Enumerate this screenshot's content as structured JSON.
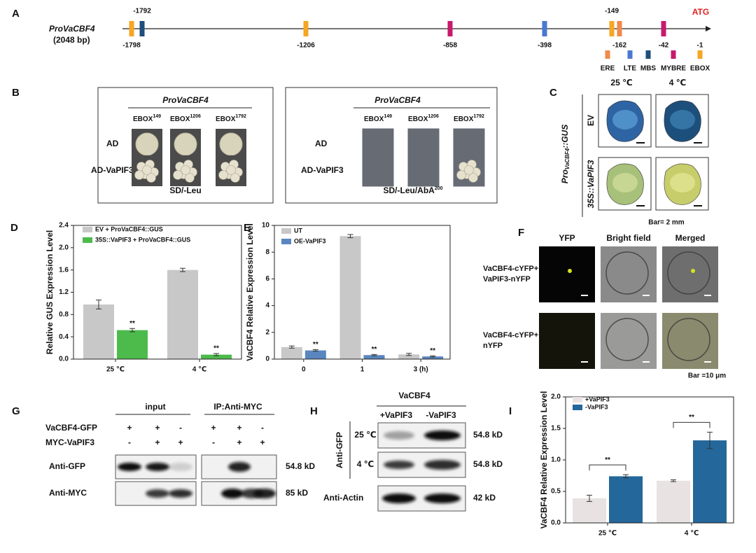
{
  "panel_labels": [
    "A",
    "B",
    "C",
    "D",
    "E",
    "F",
    "G",
    "H",
    "I"
  ],
  "panel_a": {
    "promoter": "ProVaCBF4",
    "length": "(2048 bp)",
    "start_codon": "ATG",
    "sites": [
      {
        "label": "-1798",
        "type": "EBOX",
        "side": "bottom"
      },
      {
        "label": "-1792",
        "type": "MBS",
        "side": "top"
      },
      {
        "label": "-1206",
        "type": "EBOX",
        "side": "bottom"
      },
      {
        "label": "-858",
        "type": "MYBRE",
        "side": "bottom"
      },
      {
        "label": "-398",
        "type": "LTE",
        "side": "bottom"
      },
      {
        "label": "-149",
        "type": "EBOX",
        "side": "top"
      },
      {
        "label": "-162",
        "type": "ERE",
        "side": "bottom"
      },
      {
        "label": "-42",
        "type": "MYBRE",
        "side": "bottom"
      }
    ],
    "end_label": "-1",
    "legend": [
      {
        "name": "ERE",
        "color": "#f08a4b"
      },
      {
        "name": "LTE",
        "color": "#4a78d0"
      },
      {
        "name": "MBS",
        "color": "#1f4e79"
      },
      {
        "name": "MYBRE",
        "color": "#c8196b"
      },
      {
        "name": "EBOX",
        "color": "#f5a623"
      }
    ]
  },
  "panel_b": [
    {
      "header": "ProVaCBF4",
      "columns": [
        {
          "text": "EBOX",
          "sup": "149"
        },
        {
          "text": "EBOX",
          "sup": "1206"
        },
        {
          "text": "EBOX",
          "sup": "1792"
        }
      ],
      "rows": [
        "AD",
        "AD-VaPIF3"
      ],
      "growth": [
        [
          true,
          true,
          true
        ],
        [
          true,
          true,
          true
        ]
      ],
      "medium": {
        "text": "SD/-Leu"
      }
    },
    {
      "header": "ProVaCBF4",
      "columns": [
        {
          "text": "EBOX",
          "sup": "149"
        },
        {
          "text": "EBOX",
          "sup": "1206"
        },
        {
          "text": "EBOX",
          "sup": "1792"
        }
      ],
      "rows": [
        "AD",
        "AD-VaPIF3"
      ],
      "growth": [
        [
          false,
          false,
          false
        ],
        [
          false,
          false,
          true
        ]
      ],
      "medium": {
        "text": "SD/-Leu/AbA",
        "sup": "200"
      }
    }
  ],
  "panel_c": {
    "columns": [
      "25 ℃",
      "4 ℃"
    ],
    "rows": [
      "EV",
      "35S::VaPIF3"
    ],
    "construct": {
      "prefix": "Pro",
      "sub": "VaCBF4",
      "suffix": "::GUS"
    },
    "scale": "Bar= 2 mm"
  },
  "panel_f": {
    "columns": [
      "YFP",
      "Bright field",
      "Merged"
    ],
    "rows": [
      [
        "VaCBF4-cYFP+",
        "VaPIF3-nYFP"
      ],
      [
        "VaCBF4-cYFP+",
        "nYFP"
      ]
    ],
    "scale": "Bar =10 μm"
  },
  "panel_g": {
    "groups": [
      "input",
      "IP:Anti-MYC"
    ],
    "conditions": [
      {
        "name": "VaCBF4-GFP",
        "signs": [
          "+",
          "+",
          "-",
          "+",
          "+",
          "-"
        ]
      },
      {
        "name": "MYC-VaPIF3",
        "signs": [
          "-",
          "+",
          "+",
          "-",
          "+",
          "+"
        ]
      }
    ],
    "blots": [
      {
        "antibody": "Anti-GFP",
        "size": "54.8 kD"
      },
      {
        "antibody": "Anti-MYC",
        "size": "85 kD"
      }
    ]
  },
  "panel_h": {
    "protein": "VaCBF4",
    "columns": [
      "+VaPIF3",
      "-VaPIF3"
    ],
    "antibody": "Anti-GFP",
    "rows": [
      {
        "condition": "25 ℃",
        "size": "54.8 kD"
      },
      {
        "condition": "4 ℃",
        "size": "54.8 kD"
      }
    ],
    "loading": {
      "antibody": "Anti-Actin",
      "size": "42 kD"
    }
  },
  "chart_data": [
    {
      "type": "bar",
      "y_label": "Relative GUS Expression Level",
      "categories": [
        "25 ℃",
        "4 ℃"
      ],
      "series": [
        {
          "name": "EV + ProVaCBF4::GUS",
          "color": "#c8c8c8",
          "values": [
            0.98,
            1.6
          ],
          "errors": [
            0.08,
            0.03
          ]
        },
        {
          "name": "35S::VaPIF3 + ProVaCBF4::GUS",
          "color": "#4cbb4c",
          "values": [
            0.52,
            0.08
          ],
          "errors": [
            0.03,
            0.02
          ],
          "significance": [
            "**",
            "**"
          ]
        }
      ],
      "ylim": [
        0,
        2.4
      ],
      "yticks": [
        {
          "value": 0,
          "label": "0.0"
        },
        0.4,
        0.8,
        1.2,
        1.6,
        {
          "value": 2,
          "label": "2.0"
        },
        2.4
      ]
    },
    {
      "type": "bar",
      "y_label": "VaCBF4 Relative Expression Level",
      "categories": [
        "0",
        "1",
        "3 (h)"
      ],
      "series": [
        {
          "name": "UT",
          "color": "#c8c8c8",
          "values": [
            0.9,
            9.2,
            0.35
          ],
          "errors": [
            0.08,
            0.12,
            0.08
          ]
        },
        {
          "name": "OE-VaPIF3",
          "color": "#5a86bf",
          "values": [
            0.65,
            0.3,
            0.2
          ],
          "errors": [
            0.06,
            0.05,
            0.04
          ],
          "significance": [
            "**",
            "**",
            "**"
          ]
        }
      ],
      "ylim": [
        0,
        10
      ],
      "yticks": [
        0,
        2,
        4,
        6,
        8,
        10
      ]
    },
    {
      "type": "bar",
      "y_label": "VaCBF4 Relative  Expression Level",
      "categories": [
        "25 ℃",
        "4 ℃"
      ],
      "series": [
        {
          "name": "+VaPIF3",
          "color": "#e8e2e2",
          "values": [
            0.39,
            0.67
          ],
          "errors": [
            0.05,
            0.015
          ]
        },
        {
          "name": "-VaPIF3",
          "color": "#24679a",
          "values": [
            0.74,
            1.31
          ],
          "errors": [
            0.025,
            0.13
          ]
        }
      ],
      "comparisons": [
        "**",
        "**"
      ],
      "ylim": [
        0,
        2
      ],
      "yticks": [
        {
          "value": 0,
          "label": "0.0"
        },
        0.5,
        {
          "value": 1,
          "label": "1.0"
        },
        1.5,
        {
          "value": 2,
          "label": "2.0"
        }
      ]
    }
  ]
}
